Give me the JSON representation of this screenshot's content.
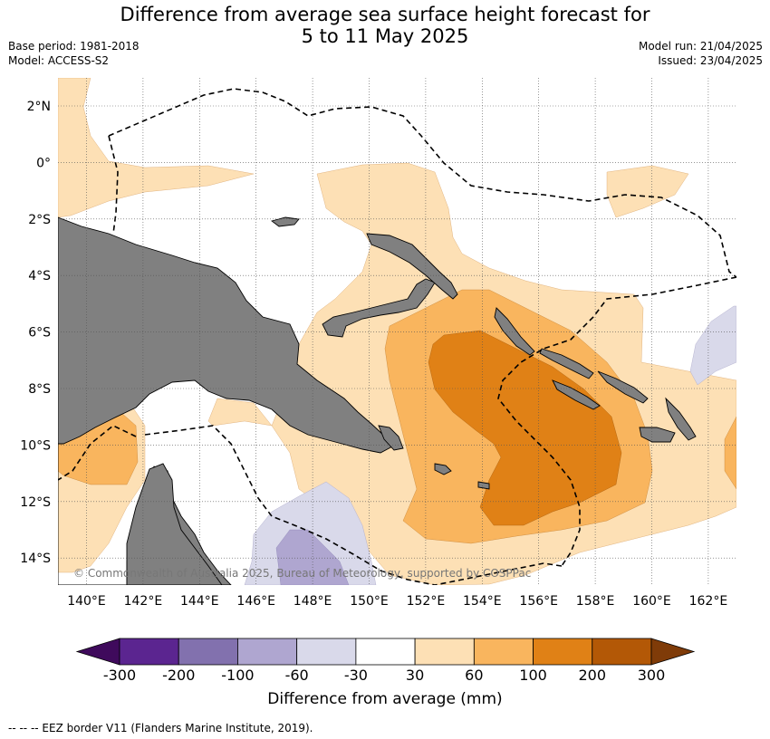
{
  "title_line1": "Difference from average sea surface height forecast for",
  "title_line2": "5 to 11 May 2025",
  "base_period": "Base period: 1981-2018",
  "model": "Model: ACCESS-S2",
  "model_run": "Model run: 21/04/2025",
  "issued": "Issued: 23/04/2025",
  "credit": "© Commonwealth of Australia 2025, Bureau of Meteorology, supported by COSPPac",
  "colorbar_label": "Difference from average (mm)",
  "footnote": "--  --  -- EEZ border V11 (Flanders Marine Institute, 2019).",
  "lon_ticks": [
    "140°E",
    "142°E",
    "144°E",
    "146°E",
    "148°E",
    "150°E",
    "152°E",
    "154°E",
    "156°E",
    "158°E",
    "160°E",
    "162°E"
  ],
  "lat_ticks": [
    "2°N",
    "0°",
    "2°S",
    "4°S",
    "6°S",
    "8°S",
    "10°S",
    "12°S",
    "14°S"
  ],
  "colorbar": {
    "ticks": [
      "-300",
      "-200",
      "-100",
      "-60",
      "-30",
      "30",
      "60",
      "100",
      "200",
      "300"
    ],
    "colors": [
      "#3f0a5c",
      "#5b2590",
      "#8271ae",
      "#afa6d0",
      "#d9d9ea",
      "#ffffff",
      "#fde0b5",
      "#f9b55e",
      "#e08116",
      "#b35806",
      "#7f3b08"
    ]
  },
  "colors": {
    "land": "#808080",
    "grid": "#555555",
    "eez": "#000000"
  }
}
